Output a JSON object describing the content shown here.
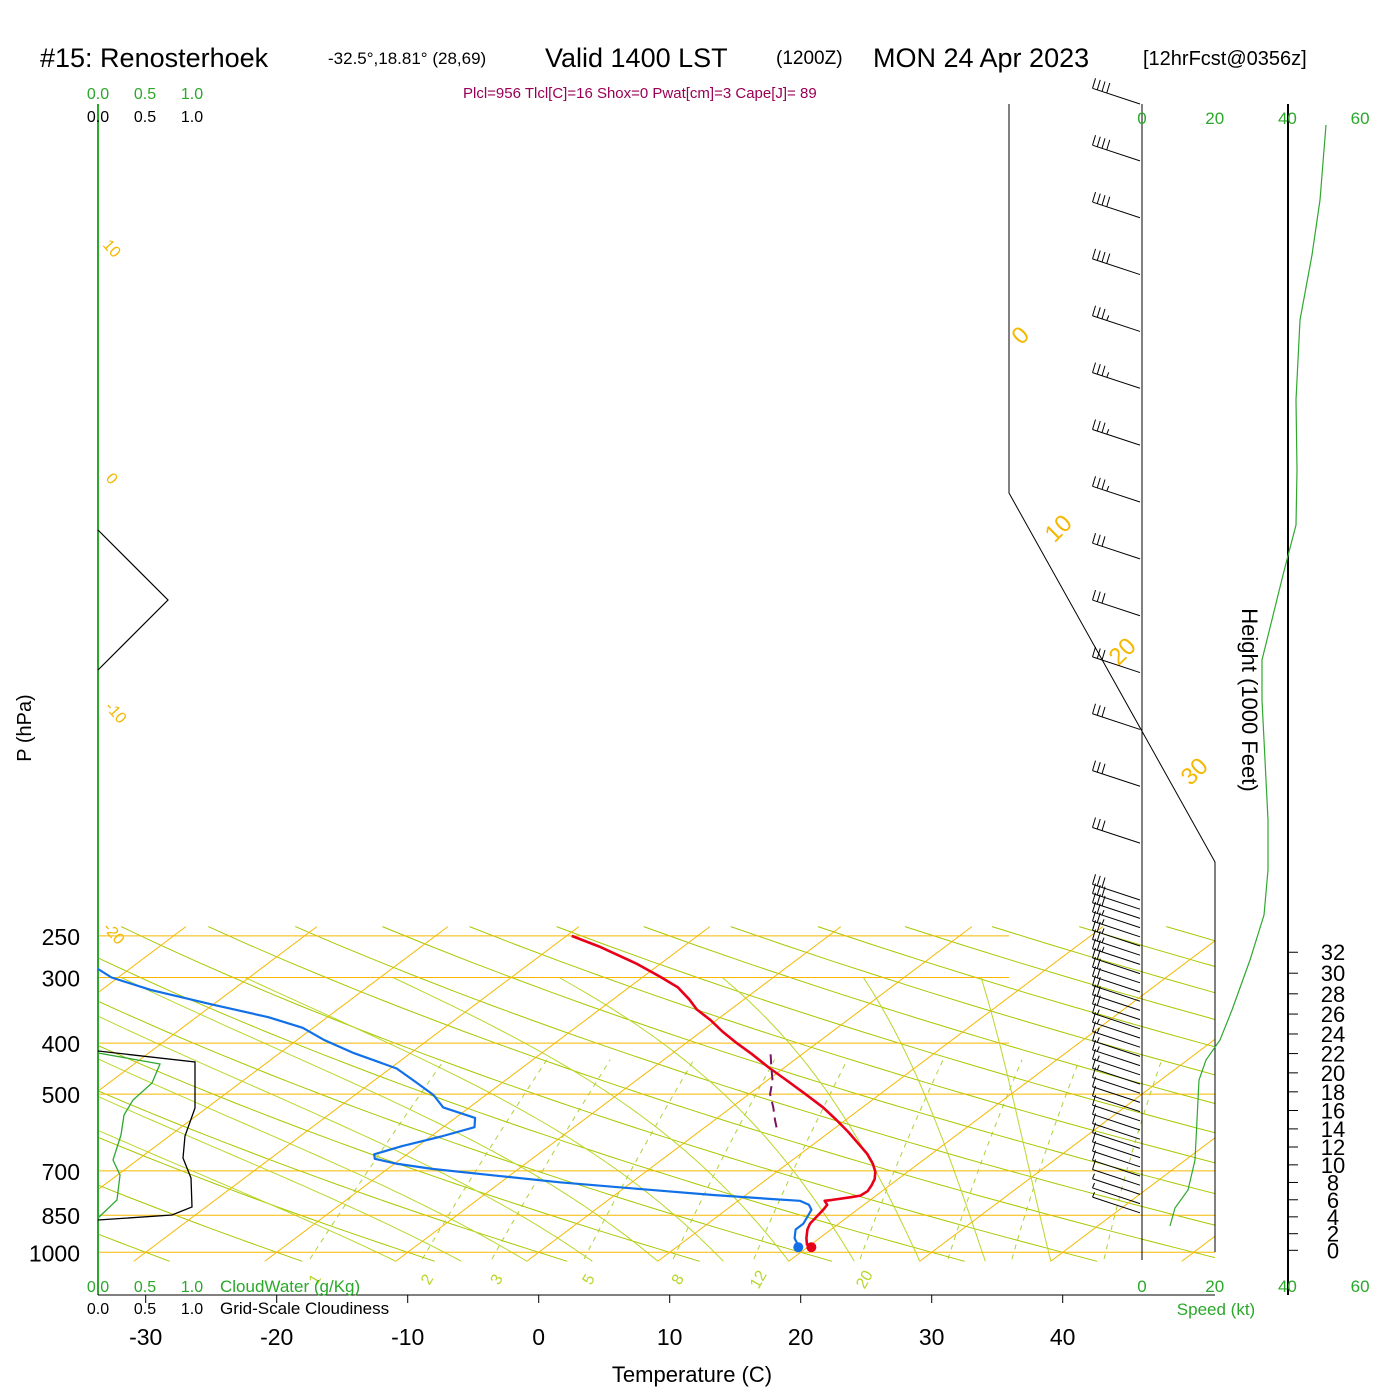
{
  "header": {
    "station": "#15: Renosterhoek",
    "coords": "-32.5°,18.81° (28,69)",
    "valid": "Valid 1400 LST",
    "zulu": "(1200Z)",
    "date": "MON 24 Apr 2023",
    "forecast": "[12hrFcst@0356z]",
    "params": "Plcl=956 Tlcl[C]=16 Shox=0 Pwat[cm]=3 Cape[J]= 89"
  },
  "colors": {
    "temperature": "#e8001a",
    "dewpoint": "#1170e8",
    "parcel": "#7a1660",
    "isotherm": "#f5b800",
    "dry_adiabat": "#a8c800",
    "moist_adiabat": "#b7d82a",
    "mixing_ratio": "#a8d43a",
    "cloudwater": "#2fa82f",
    "cloudiness": "#000000",
    "scale_green": "#2aa82a",
    "params_text": "#990055"
  },
  "chart_data": {
    "type": "line",
    "title": "#15: Renosterhoek -32.5°,18.81° (28,69) Valid 1400 LST (1200Z) MON 24 Apr 2023 [12hrFcst@0356z]",
    "xlabel": "Temperature (C)",
    "ylabel": "P (hPa)",
    "y2label": "Height (1000 Feet)",
    "xlim": [
      -34,
      46
    ],
    "ylim": [
      1032,
      250
    ],
    "xticks": [
      -30,
      -20,
      -10,
      0,
      10,
      20,
      30,
      40
    ],
    "yticks": [
      250,
      300,
      400,
      500,
      700,
      850,
      1000
    ],
    "height_ticks": [
      0,
      2,
      4,
      6,
      8,
      10,
      12,
      14,
      16,
      18,
      20,
      22,
      24,
      26,
      28,
      30,
      32
    ],
    "isotherm_labels": [
      "10",
      "0",
      "-10",
      "-20",
      "0",
      "10",
      "20",
      "30"
    ],
    "mixing_ratio_labels": [
      "1",
      "2",
      "3",
      "5",
      "8",
      "12",
      "20"
    ],
    "series": [
      {
        "name": "Temperature",
        "points": [
          [
            20.3,
            978
          ],
          [
            19.7,
            967
          ],
          [
            19.0,
            940
          ],
          [
            18.2,
            905
          ],
          [
            17.8,
            882
          ],
          [
            17.6,
            855
          ],
          [
            17.4,
            830
          ],
          [
            17.2,
            812
          ],
          [
            16.6,
            798
          ],
          [
            17.1,
            795
          ],
          [
            18.2,
            786
          ],
          [
            18.8,
            780
          ],
          [
            18.9,
            765
          ],
          [
            18.6,
            745
          ],
          [
            18.2,
            725
          ],
          [
            17.5,
            702
          ],
          [
            16.5,
            678
          ],
          [
            15.1,
            650
          ],
          [
            13.3,
            620
          ],
          [
            11.4,
            590
          ],
          [
            9.3,
            560
          ],
          [
            7.0,
            530
          ],
          [
            4.3,
            500
          ],
          [
            1.5,
            471
          ],
          [
            -1.2,
            445
          ],
          [
            -3.8,
            420
          ],
          [
            -6.1,
            400
          ],
          [
            -8.4,
            380
          ],
          [
            -10.4,
            362
          ],
          [
            -12.6,
            345
          ],
          [
            -14.2,
            330
          ],
          [
            -16.3,
            313
          ],
          [
            -18.7,
            299
          ],
          [
            -21.7,
            283
          ],
          [
            -26.4,
            262
          ],
          [
            -29.6,
            250
          ]
        ]
      },
      {
        "name": "Dewpoint",
        "points": [
          [
            19.3,
            978
          ],
          [
            19.0,
            967
          ],
          [
            18.1,
            940
          ],
          [
            17.3,
            905
          ],
          [
            17.3,
            882
          ],
          [
            16.9,
            855
          ],
          [
            16.5,
            830
          ],
          [
            15.8,
            812
          ],
          [
            14.7,
            798
          ],
          [
            12.5,
            792
          ],
          [
            7.5,
            778
          ],
          [
            2.0,
            760
          ],
          [
            -5.5,
            736
          ],
          [
            -11.0,
            715
          ],
          [
            -16.6,
            694
          ],
          [
            -19.9,
            678
          ],
          [
            -22.0,
            664
          ],
          [
            -22.5,
            651
          ],
          [
            -21.2,
            628
          ],
          [
            -19.2,
            602
          ],
          [
            -17.6,
            578
          ],
          [
            -18.5,
            555
          ],
          [
            -22.0,
            530
          ],
          [
            -24.0,
            502
          ],
          [
            -26.7,
            474
          ],
          [
            -29.5,
            447
          ],
          [
            -34.3,
            418
          ],
          [
            -38.0,
            394
          ],
          [
            -40.8,
            374
          ],
          [
            -44.5,
            357
          ],
          [
            -50.0,
            338
          ],
          [
            -56.2,
            317
          ],
          [
            -60.5,
            300
          ],
          [
            -63.3,
            284
          ],
          [
            -65.0,
            268
          ],
          [
            -67.5,
            255
          ]
        ]
      },
      {
        "name": "Parcel",
        "points": [
          [
            -2.4,
            420
          ],
          [
            -1.0,
            445
          ],
          [
            0.4,
            471
          ],
          [
            1.6,
            500
          ],
          [
            3.2,
            530
          ],
          [
            4.6,
            560
          ],
          [
            6.0,
            590
          ]
        ]
      }
    ],
    "wind_barbs_speed_kt": [
      40,
      40,
      40,
      40,
      35,
      35,
      35,
      35,
      30,
      30,
      30,
      30,
      30,
      30,
      30,
      30,
      30,
      25,
      25,
      25,
      25,
      25,
      20,
      20,
      20,
      20,
      20,
      20,
      15,
      15,
      15,
      15,
      15,
      15,
      15,
      10,
      10,
      10,
      10,
      10,
      10,
      10,
      10,
      10,
      10,
      10,
      5,
      5,
      5
    ],
    "wind_scale": {
      "xlabel": "Speed (kt)",
      "ticks": [
        0,
        20,
        40,
        60
      ]
    },
    "cloud_scale": {
      "label_water": "CloudWater (g/Kg)",
      "label_cloudiness": "Grid-Scale Cloudiness",
      "ticks": [
        "0.0",
        "0.5",
        "1.0"
      ]
    }
  }
}
